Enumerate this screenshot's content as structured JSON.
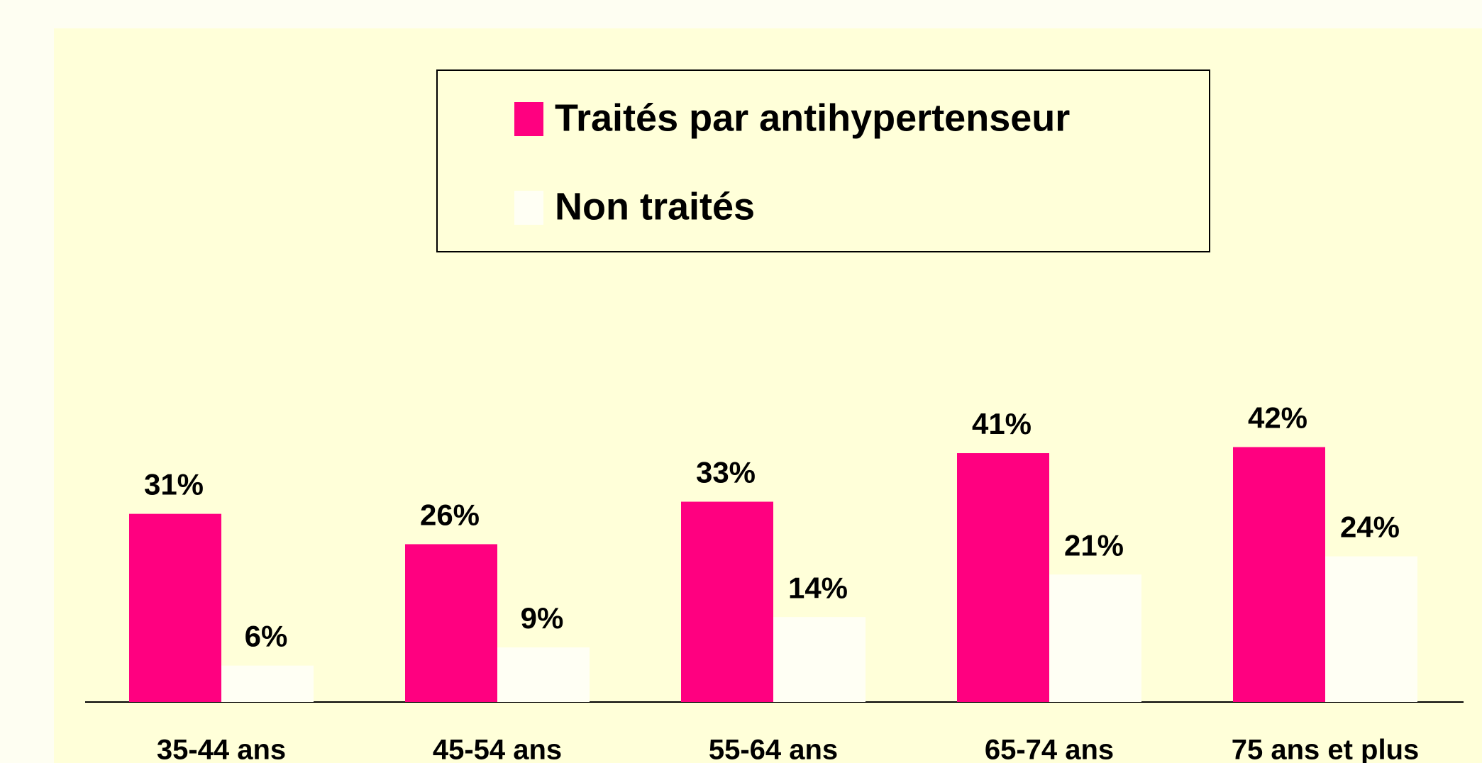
{
  "chart_data": {
    "type": "bar",
    "categories": [
      "35-44 ans",
      "45-54 ans",
      "55-64 ans",
      "65-74 ans",
      "75 ans et plus"
    ],
    "series": [
      {
        "name": "Traités par antihypertenseur",
        "color": "#ff0080",
        "values": [
          31,
          26,
          33,
          41,
          42
        ],
        "value_labels": [
          "31%",
          "26%",
          "33%",
          "41%",
          "42%"
        ]
      },
      {
        "name": "Non traités",
        "color": "#fffff4",
        "values": [
          6,
          9,
          14,
          21,
          24
        ],
        "value_labels": [
          "6%",
          "9%",
          "14%",
          "21%",
          "24%"
        ]
      }
    ],
    "ylim": [
      0,
      100
    ]
  }
}
